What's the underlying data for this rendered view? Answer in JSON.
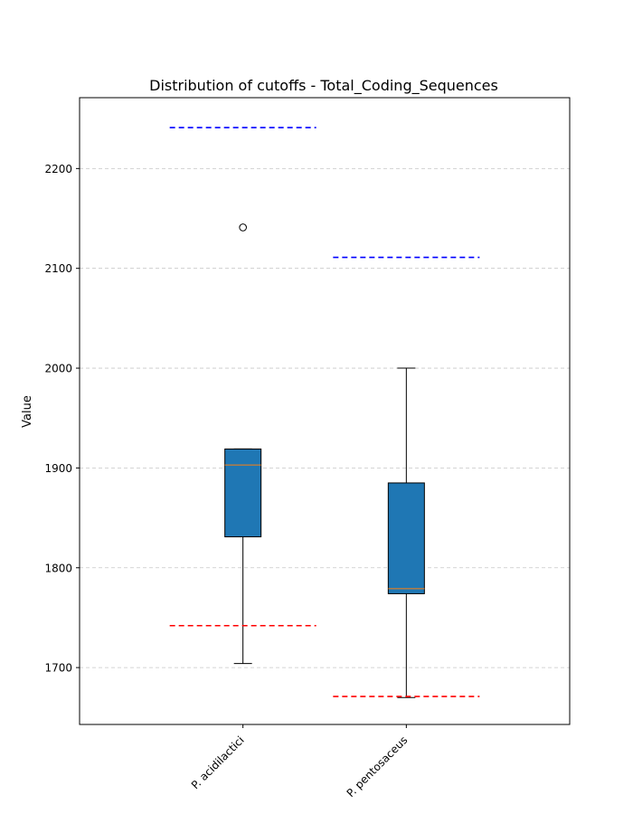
{
  "chart_data": {
    "type": "box",
    "title": "Distribution of cutoffs - Total_Coding_Sequences",
    "xlabel": "",
    "ylabel": "Value",
    "ylim": [
      1643,
      2271
    ],
    "yticks": [
      1700,
      1800,
      1900,
      2000,
      2100,
      2200
    ],
    "grid": "horizontal dashed",
    "box_color": "#1f77b4",
    "median_color": "#ff7f0e",
    "categories": [
      "P. acidilactici",
      "P. pentosaceus"
    ],
    "boxes": [
      {
        "category": "P. acidilactici",
        "whisker_low": 1704,
        "q1": 1831,
        "median": 1903,
        "q3": 1919,
        "whisker_high": 1919,
        "outliers": [
          2141
        ],
        "upper_cutoff": 2241,
        "lower_cutoff": 1742
      },
      {
        "category": "P. pentosaceus",
        "whisker_low": 1670,
        "q1": 1774,
        "median": 1779,
        "q3": 1885,
        "whisker_high": 2000,
        "outliers": [],
        "upper_cutoff": 2111,
        "lower_cutoff": 1671
      }
    ],
    "upper_cutoff_color": "#0000ff",
    "lower_cutoff_color": "#ff0000"
  }
}
